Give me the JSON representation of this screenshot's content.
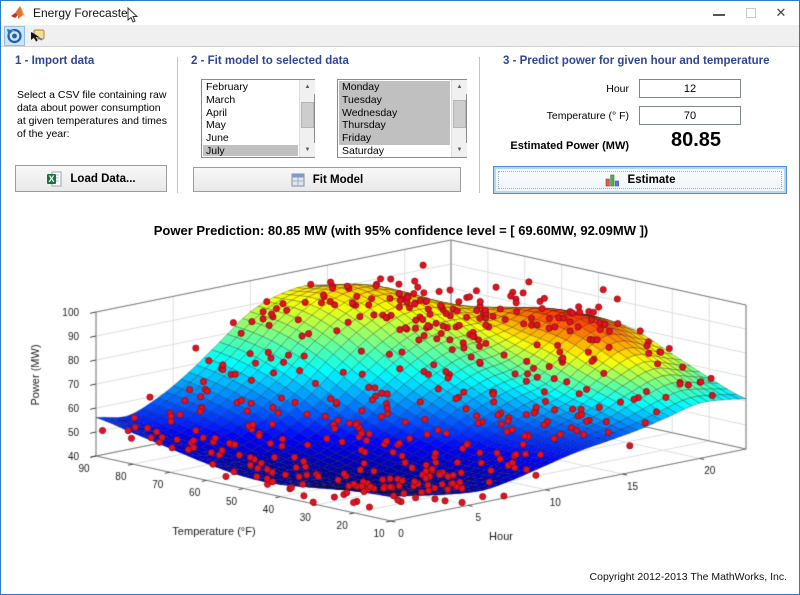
{
  "window": {
    "title": "Energy Forecaster"
  },
  "toolbar": {
    "buttons": [
      {
        "name": "rotate-3d",
        "selected": true
      },
      {
        "name": "data-cursor",
        "selected": false
      }
    ]
  },
  "panels": {
    "import": {
      "heading": "1 - Import data",
      "description": "Select a CSV file containing raw data about power consumption at given temperatures and times of the year:",
      "button": "Load Data..."
    },
    "fit": {
      "heading": "2 - Fit model to selected data",
      "months": [
        "February",
        "March",
        "April",
        "May",
        "June",
        "July"
      ],
      "months_selected": [
        "July"
      ],
      "days": [
        "Monday",
        "Tuesday",
        "Wednesday",
        "Thursday",
        "Friday",
        "Saturday"
      ],
      "days_selected": [
        "Monday",
        "Tuesday",
        "Wednesday",
        "Thursday",
        "Friday"
      ],
      "button": "Fit Model"
    },
    "predict": {
      "heading": "3 - Predict power for given hour and temperature",
      "hour_label": "Hour",
      "hour_value": "12",
      "temperature_label": "Temperature (° F)",
      "temperature_value": "70",
      "estimated_label": "Estimated Power (MW)",
      "estimated_value": "80.85",
      "button": "Estimate"
    }
  },
  "chart_data": {
    "type": "3d_surface_with_scatter",
    "title": "Power Prediction: 80.85 MW (with 95% confidence level = [ 69.60MW, 92.09MW ])",
    "xlabel": "Hour",
    "ylabel": "Temperature (°F)",
    "zlabel": "Power (MW)",
    "x_range": [
      0,
      23
    ],
    "y_range": [
      10,
      90
    ],
    "z_range": [
      40,
      100
    ],
    "x_ticks": [
      0,
      5,
      10,
      15,
      20
    ],
    "y_ticks": [
      90,
      80,
      70,
      60,
      50,
      40,
      30,
      20,
      10
    ],
    "z_ticks": [
      40,
      50,
      60,
      70,
      80,
      90,
      100
    ],
    "colormap": "jet",
    "grid": true,
    "surface": {
      "temps": [
        10,
        20,
        30,
        40,
        50,
        60,
        70,
        80,
        90
      ],
      "hours": [
        0,
        2,
        4,
        6,
        8,
        10,
        12,
        14,
        16,
        18,
        20,
        22,
        24
      ],
      "power": [
        [
          50,
          48,
          46,
          45,
          47,
          50,
          53,
          55,
          57,
          60,
          63,
          62,
          60
        ],
        [
          49,
          46,
          44,
          44,
          46,
          50,
          54,
          57,
          61,
          67,
          71,
          68,
          65
        ],
        [
          47,
          44,
          42,
          43,
          46,
          51,
          56,
          61,
          65,
          73,
          79,
          75,
          71
        ],
        [
          45,
          43,
          42,
          44,
          49,
          56,
          63,
          68,
          71,
          79,
          86,
          82,
          77
        ],
        [
          45,
          44,
          44,
          47,
          53,
          62,
          70,
          76,
          78,
          82,
          88,
          84,
          79
        ],
        [
          47,
          45,
          47,
          52,
          60,
          70,
          79,
          85,
          86,
          85,
          86,
          81,
          77
        ],
        [
          50,
          48,
          52,
          59,
          68,
          79,
          88,
          93,
          92,
          87,
          82,
          77,
          74
        ],
        [
          53,
          51,
          56,
          64,
          74,
          85,
          93,
          96,
          93,
          84,
          75,
          71,
          68
        ],
        [
          56,
          54,
          59,
          67,
          77,
          87,
          92,
          93,
          88,
          79,
          69,
          65,
          62
        ]
      ]
    },
    "scatter": {
      "marker_color": "#e31220",
      "marker_edge": "#8a0e14",
      "count": 520,
      "noise_sd": 5,
      "seed": 987654321
    }
  },
  "footer": {
    "copyright": "Copyright 2012-2013 The MathWorks, Inc."
  }
}
